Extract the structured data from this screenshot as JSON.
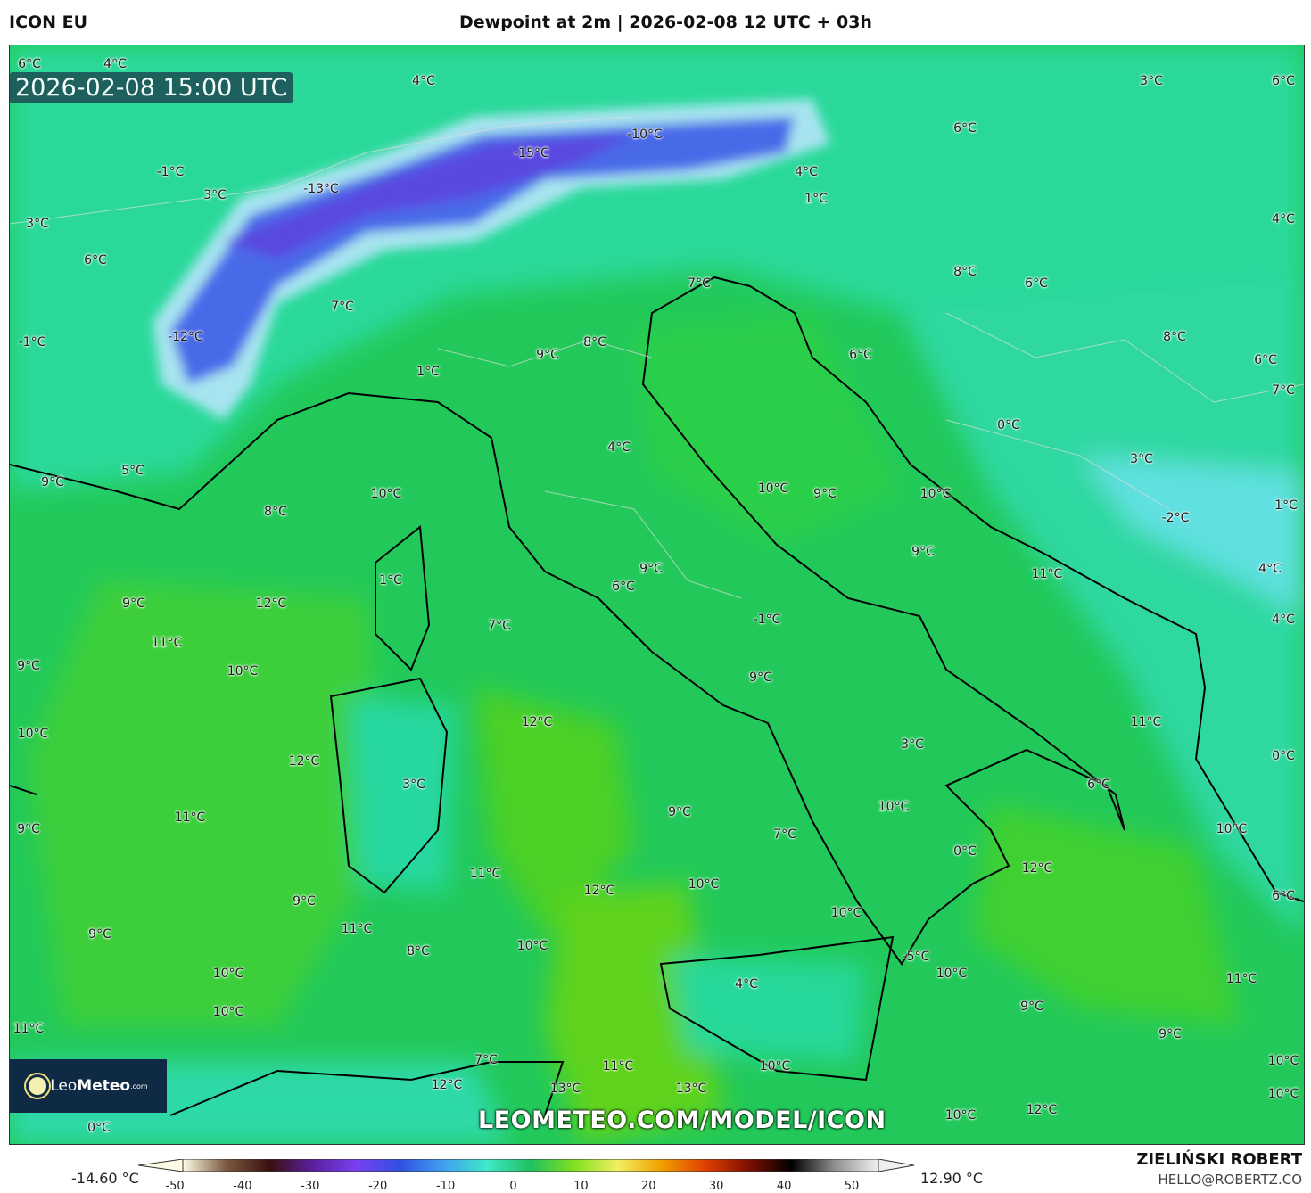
{
  "header": {
    "model": "ICON EU",
    "title": "Dewpoint at 2m | 2026-02-08 12 UTC + 03h"
  },
  "map": {
    "valid_time": "2026-02-08 15:00 UTC",
    "watermark": "LEOMETEO.COM/MODEL/ICON",
    "logo": {
      "name": "Leo",
      "bold": "Meteo",
      "suffix": ".com"
    },
    "labels": [
      "6°C",
      "4°C",
      "4°C",
      "3°C",
      "6°C",
      "-10°C",
      "-15°C",
      "6°C",
      "-1°C",
      "3°C",
      "-13°C",
      "4°C",
      "1°C",
      "3°C",
      "4°C",
      "6°C",
      "8°C",
      "7°C",
      "6°C",
      "7°C",
      "-1°C",
      "-12°C",
      "8°C",
      "8°C",
      "9°C",
      "6°C",
      "6°C",
      "1°C",
      "7°C",
      "0°C",
      "4°C",
      "3°C",
      "5°C",
      "9°C",
      "10°C",
      "9°C",
      "10°C",
      "10°C",
      "1°C",
      "-2°C",
      "8°C",
      "9°C",
      "9°C",
      "4°C",
      "11°C",
      "1°C",
      "6°C",
      "9°C",
      "12°C",
      "-1°C",
      "4°C",
      "7°C",
      "11°C",
      "9°C",
      "10°C",
      "9°C",
      "11°C",
      "12°C",
      "10°C",
      "3°C",
      "12°C",
      "0°C",
      "3°C",
      "6°C",
      "10°C",
      "9°C",
      "11°C",
      "9°C",
      "10°C",
      "7°C",
      "0°C",
      "12°C",
      "11°C",
      "12°C",
      "10°C",
      "9°C",
      "6°C",
      "10°C",
      "11°C",
      "9°C",
      "10°C",
      "8°C",
      "-5°C",
      "10°C",
      "10°C",
      "11°C",
      "4°C",
      "9°C",
      "10°C",
      "11°C",
      "9°C",
      "7°C",
      "11°C",
      "10°C",
      "10°C",
      "12°C",
      "13°C",
      "10°C",
      "0°C",
      "13°C",
      "10°C",
      "12°C"
    ]
  },
  "colorbar": {
    "min_label": "-14.60 °C",
    "max_label": "12.90 °C",
    "ticks": [
      "-50",
      "-40",
      "-30",
      "-20",
      "-10",
      "0",
      "10",
      "20",
      "30",
      "40",
      "50"
    ],
    "colors": [
      "#fdfbe6",
      "#7a5a40",
      "#3a1010",
      "#5a20a0",
      "#7a40f0",
      "#3050e0",
      "#40a0f0",
      "#40e8c8",
      "#20c060",
      "#80e020",
      "#f0f060",
      "#f0a000",
      "#e04000",
      "#801000",
      "#000000",
      "#909090",
      "#f0f0f0"
    ]
  },
  "credits": {
    "author": "ZIELIŃSKI ROBERT",
    "email": "HELLO@ROBERTZ.CO"
  }
}
